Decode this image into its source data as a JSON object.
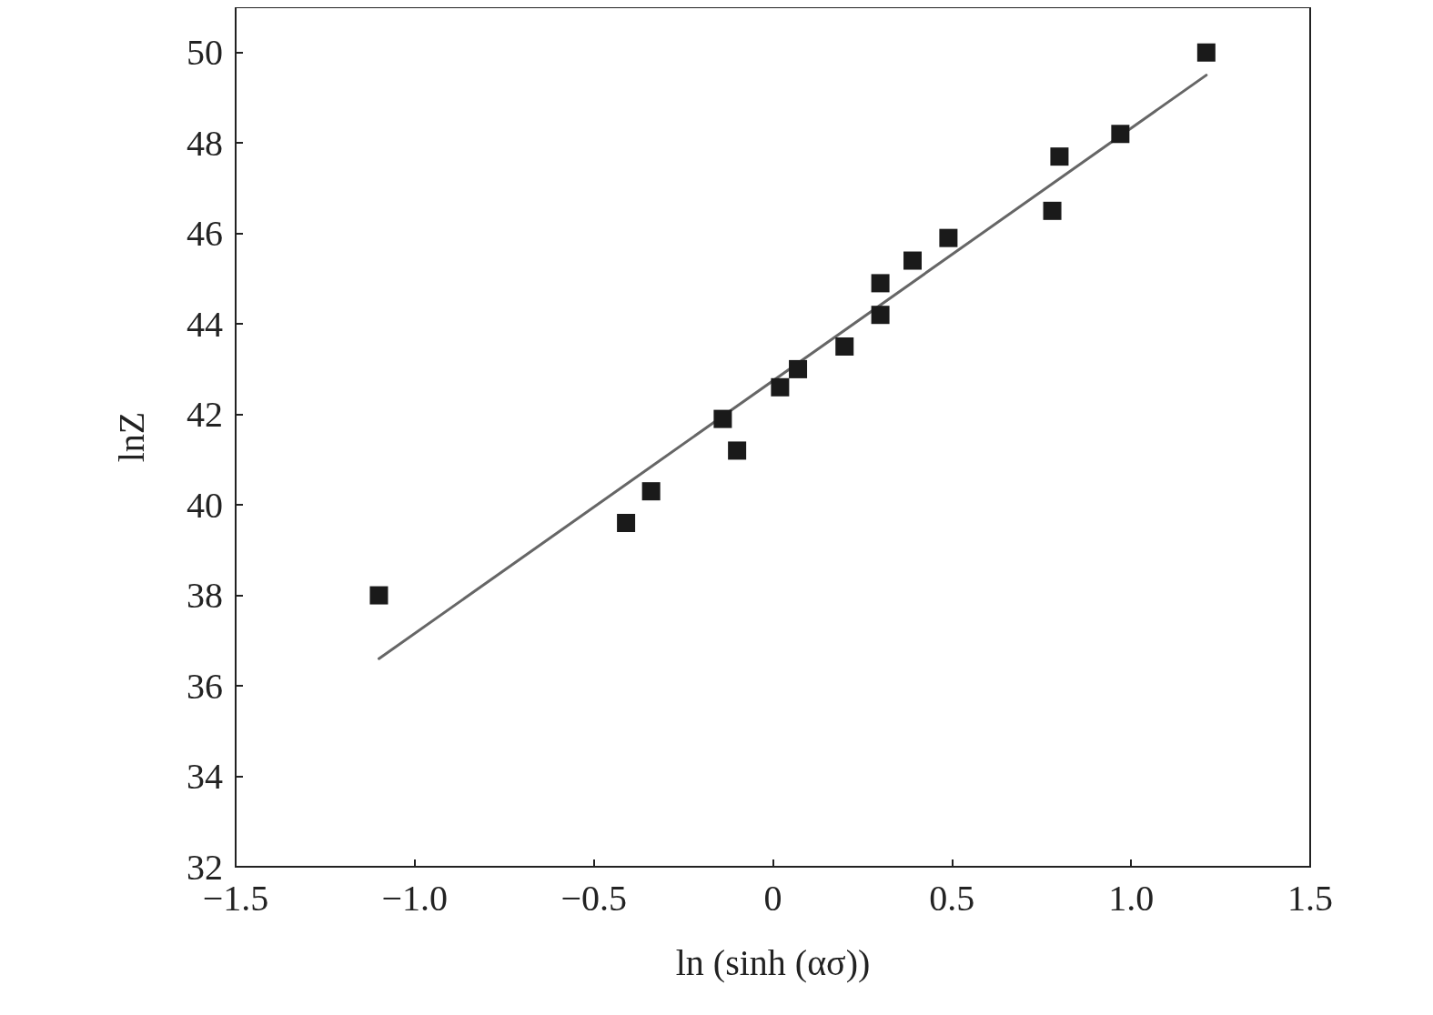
{
  "chart_data": {
    "type": "scatter",
    "xlabel": "ln (sinh (ασ))",
    "ylabel": "lnZ",
    "xlim": [
      -1.5,
      1.5
    ],
    "ylim": [
      32,
      51
    ],
    "xticks": [
      {
        "value": -1.5,
        "label": "−1.5"
      },
      {
        "value": -1.0,
        "label": "−1.0"
      },
      {
        "value": -0.5,
        "label": "−0.5"
      },
      0,
      0.5,
      {
        "value": 1.0,
        "label": "1.0"
      },
      1.5
    ],
    "yticks": [
      32,
      34,
      36,
      38,
      40,
      42,
      44,
      46,
      48,
      50
    ],
    "grid": false,
    "series": [
      {
        "marker": "square",
        "color": "#1a1a1a",
        "x": [
          -1.1,
          -0.41,
          -0.34,
          -0.14,
          -0.1,
          0.02,
          0.07,
          0.2,
          0.3,
          0.3,
          0.39,
          0.49,
          0.78,
          0.8,
          0.97,
          1.21
        ],
        "values": [
          38.0,
          39.6,
          40.3,
          41.9,
          41.2,
          42.6,
          43.0,
          43.5,
          44.2,
          44.9,
          45.4,
          45.9,
          46.5,
          47.7,
          48.2,
          50.0
        ]
      },
      {
        "type": "line",
        "marker": "none",
        "line_style": "solid",
        "color": "#666666",
        "x": [
          -1.1,
          1.21
        ],
        "values": [
          36.6,
          49.5
        ]
      }
    ]
  }
}
